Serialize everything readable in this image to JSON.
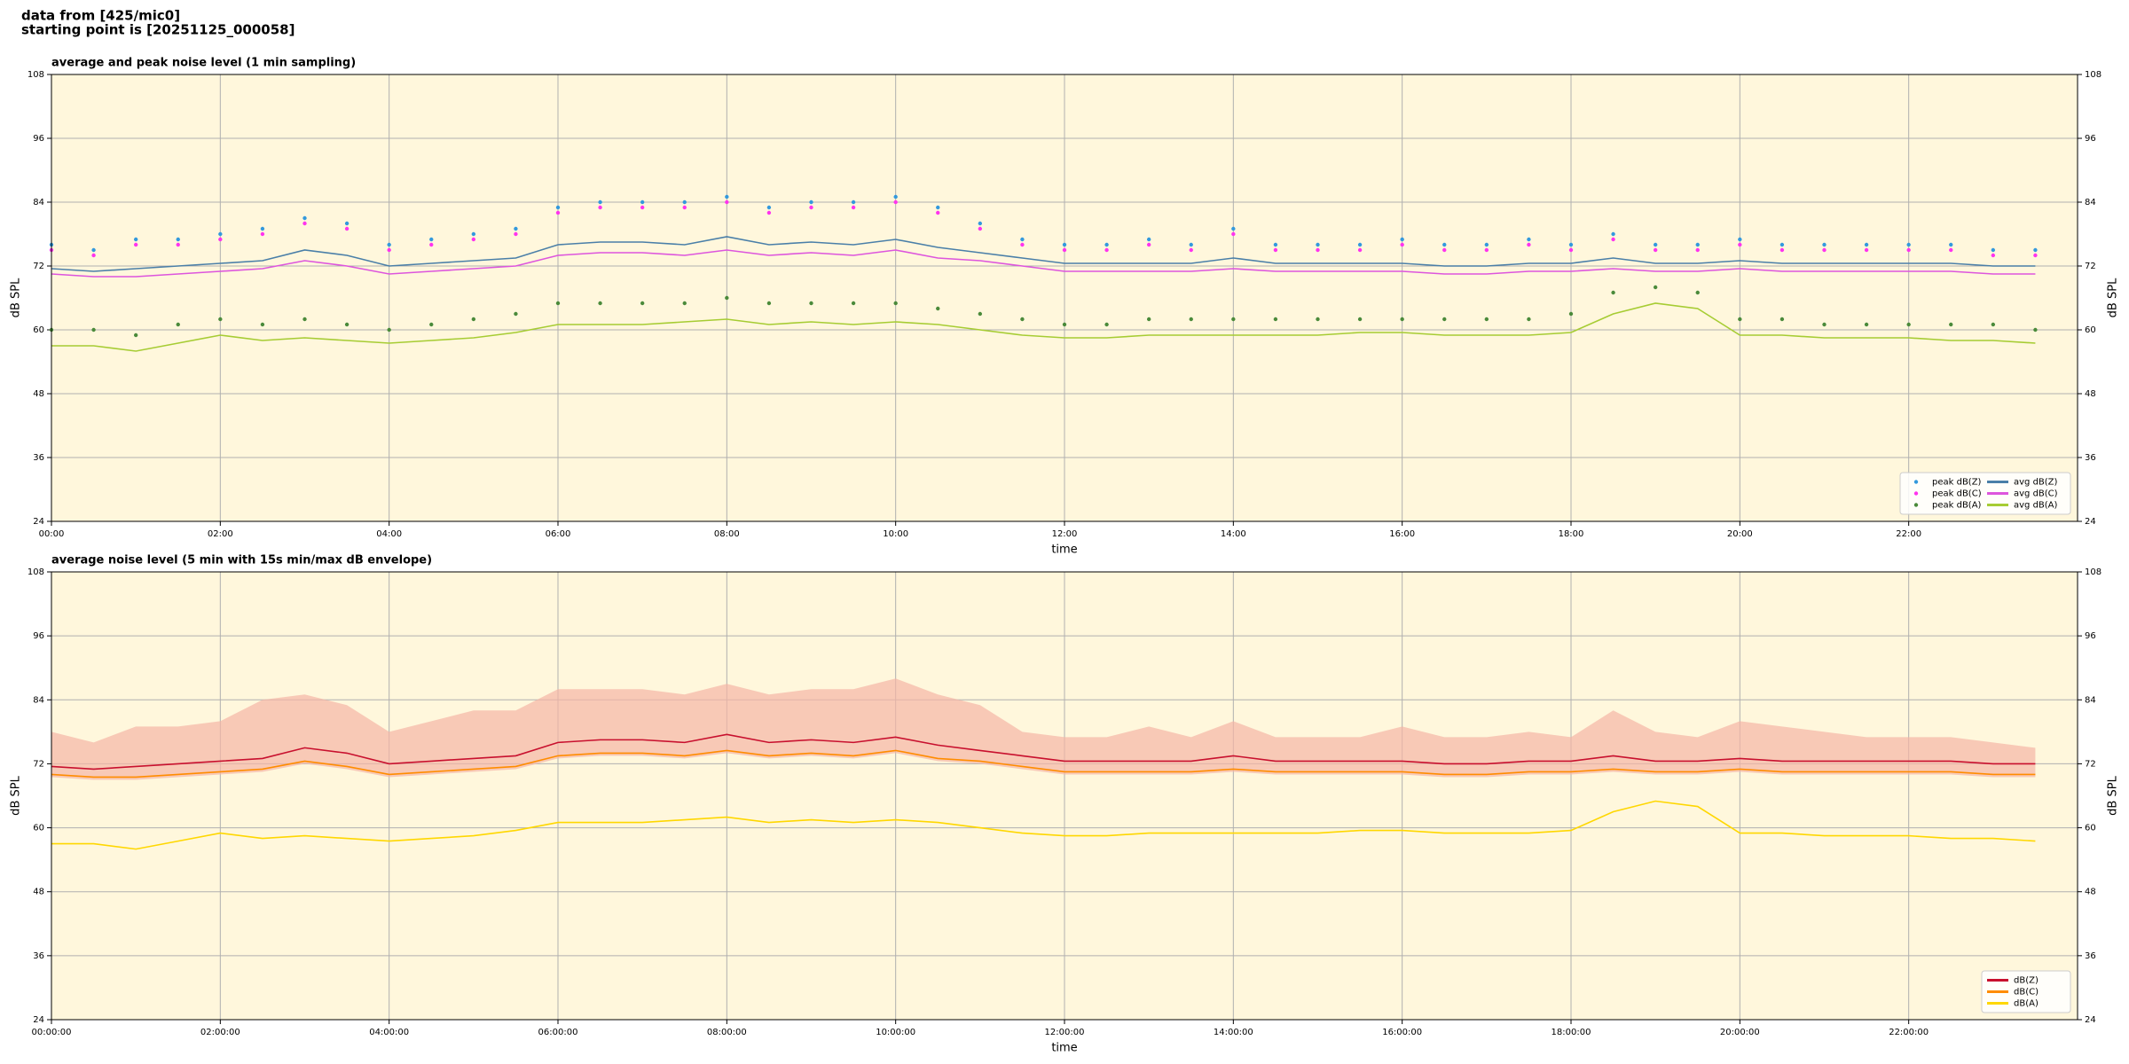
{
  "page_title": [
    "data from [425/mic0]",
    "starting point is [20251125_000058]"
  ],
  "chart_data": [
    {
      "type": "line",
      "title": "average and peak noise level (1 min sampling)",
      "xlabel": "time",
      "ylabel": "dB SPL",
      "xlim": [
        0,
        24
      ],
      "ylim": [
        24,
        108
      ],
      "yticks": [
        24,
        36,
        48,
        60,
        72,
        84,
        96,
        108
      ],
      "xticks": [
        {
          "value": 0,
          "label": "00:00"
        },
        {
          "value": 2,
          "label": "02:00"
        },
        {
          "value": 4,
          "label": "04:00"
        },
        {
          "value": 6,
          "label": "06:00"
        },
        {
          "value": 8,
          "label": "08:00"
        },
        {
          "value": 10,
          "label": "10:00"
        },
        {
          "value": 12,
          "label": "12:00"
        },
        {
          "value": 14,
          "label": "14:00"
        },
        {
          "value": 16,
          "label": "16:00"
        },
        {
          "value": 18,
          "label": "18:00"
        },
        {
          "value": 20,
          "label": "20:00"
        },
        {
          "value": 22,
          "label": "22:00"
        }
      ],
      "grid": true,
      "background": "#fff7dc",
      "legend": "lower right",
      "legend_columns": 2,
      "x": [
        0,
        0.5,
        1,
        1.5,
        2,
        2.5,
        3,
        3.5,
        4,
        4.5,
        5,
        5.5,
        6,
        6.5,
        7,
        7.5,
        8,
        8.5,
        9,
        9.5,
        10,
        10.5,
        11,
        11.5,
        12,
        12.5,
        13,
        13.5,
        14,
        14.5,
        15,
        15.5,
        16,
        16.5,
        17,
        17.5,
        18,
        18.5,
        19,
        19.5,
        20,
        20.5,
        21,
        21.5,
        22,
        22.5,
        23,
        23.5
      ],
      "series": [
        {
          "name": "peak dB(Z)",
          "color": "#3399dd",
          "marker": true,
          "values": [
            76,
            75,
            77,
            77,
            78,
            79,
            81,
            80,
            76,
            77,
            78,
            79,
            83,
            84,
            84,
            84,
            85,
            83,
            84,
            84,
            85,
            83,
            80,
            77,
            76,
            76,
            77,
            76,
            79,
            76,
            76,
            76,
            77,
            76,
            76,
            77,
            76,
            78,
            76,
            76,
            77,
            76,
            76,
            76,
            76,
            76,
            75,
            75
          ]
        },
        {
          "name": "peak dB(C)",
          "color": "#ff33ee",
          "marker": true,
          "values": [
            75,
            74,
            76,
            76,
            77,
            78,
            80,
            79,
            75,
            76,
            77,
            78,
            82,
            83,
            83,
            83,
            84,
            82,
            83,
            83,
            84,
            82,
            79,
            76,
            75,
            75,
            76,
            75,
            78,
            75,
            75,
            75,
            76,
            75,
            75,
            76,
            75,
            77,
            75,
            75,
            76,
            75,
            75,
            75,
            75,
            75,
            74,
            74
          ]
        },
        {
          "name": "peak dB(A)",
          "color": "#4a8a3a",
          "marker": true,
          "values": [
            60,
            60,
            59,
            61,
            62,
            61,
            62,
            61,
            60,
            61,
            62,
            63,
            65,
            65,
            65,
            65,
            66,
            65,
            65,
            65,
            65,
            64,
            63,
            62,
            61,
            61,
            62,
            62,
            62,
            62,
            62,
            62,
            62,
            62,
            62,
            62,
            63,
            67,
            68,
            67,
            62,
            62,
            61,
            61,
            61,
            61,
            61,
            60
          ]
        },
        {
          "name": "avg dB(Z)",
          "color": "#4a7fa8",
          "marker": false,
          "values": [
            71.5,
            71,
            71.5,
            72,
            72.5,
            73,
            75,
            74,
            72,
            72.5,
            73,
            73.5,
            76,
            76.5,
            76.5,
            76,
            77.5,
            76,
            76.5,
            76,
            77,
            75.5,
            74.5,
            73.5,
            72.5,
            72.5,
            72.5,
            72.5,
            73.5,
            72.5,
            72.5,
            72.5,
            72.5,
            72,
            72,
            72.5,
            72.5,
            73.5,
            72.5,
            72.5,
            73,
            72.5,
            72.5,
            72.5,
            72.5,
            72.5,
            72,
            72
          ]
        },
        {
          "name": "avg dB(C)",
          "color": "#dd55dd",
          "marker": false,
          "values": [
            70.5,
            70,
            70,
            70.5,
            71,
            71.5,
            73,
            72,
            70.5,
            71,
            71.5,
            72,
            74,
            74.5,
            74.5,
            74,
            75,
            74,
            74.5,
            74,
            75,
            73.5,
            73,
            72,
            71,
            71,
            71,
            71,
            71.5,
            71,
            71,
            71,
            71,
            70.5,
            70.5,
            71,
            71,
            71.5,
            71,
            71,
            71.5,
            71,
            71,
            71,
            71,
            71,
            70.5,
            70.5
          ]
        },
        {
          "name": "avg dB(A)",
          "color": "#a6cc33",
          "marker": false,
          "values": [
            57,
            57,
            56,
            57.5,
            59,
            58,
            58.5,
            58,
            57.5,
            58,
            58.5,
            59.5,
            61,
            61,
            61,
            61.5,
            62,
            61,
            61.5,
            61,
            61.5,
            61,
            60,
            59,
            58.5,
            58.5,
            59,
            59,
            59,
            59,
            59,
            59.5,
            59.5,
            59,
            59,
            59,
            59.5,
            63,
            65,
            64,
            59,
            59,
            58.5,
            58.5,
            58.5,
            58,
            58,
            57.5
          ]
        }
      ]
    },
    {
      "type": "line",
      "title": "average noise level (5 min with 15s min/max dB envelope)",
      "xlabel": "time",
      "ylabel": "dB SPL",
      "xlim": [
        0,
        24
      ],
      "ylim": [
        24,
        108
      ],
      "yticks": [
        24,
        36,
        48,
        60,
        72,
        84,
        96,
        108
      ],
      "xticks": [
        {
          "value": 0,
          "label": "00:00:00"
        },
        {
          "value": 2,
          "label": "02:00:00"
        },
        {
          "value": 4,
          "label": "04:00:00"
        },
        {
          "value": 6,
          "label": "06:00:00"
        },
        {
          "value": 8,
          "label": "08:00:00"
        },
        {
          "value": 10,
          "label": "10:00:00"
        },
        {
          "value": 12,
          "label": "12:00:00"
        },
        {
          "value": 14,
          "label": "14:00:00"
        },
        {
          "value": 16,
          "label": "16:00:00"
        },
        {
          "value": 18,
          "label": "18:00:00"
        },
        {
          "value": 20,
          "label": "20:00:00"
        },
        {
          "value": 22,
          "label": "22:00:00"
        }
      ],
      "grid": true,
      "background": "#fff7dc",
      "legend": "lower right",
      "legend_columns": 1,
      "x": [
        0,
        0.5,
        1,
        1.5,
        2,
        2.5,
        3,
        3.5,
        4,
        4.5,
        5,
        5.5,
        6,
        6.5,
        7,
        7.5,
        8,
        8.5,
        9,
        9.5,
        10,
        10.5,
        11,
        11.5,
        12,
        12.5,
        13,
        13.5,
        14,
        14.5,
        15,
        15.5,
        16,
        16.5,
        17,
        17.5,
        18,
        18.5,
        19,
        19.5,
        20,
        20.5,
        21,
        21.5,
        22,
        22.5,
        23,
        23.5
      ],
      "envelope": {
        "color": "#f5b5a5",
        "low": [
          69.5,
          69,
          69,
          69.5,
          70,
          70.5,
          72,
          71,
          69.5,
          70,
          70.5,
          71,
          73,
          73.5,
          73.5,
          73,
          74,
          73,
          73.5,
          73,
          74,
          72.5,
          72,
          71,
          70,
          70,
          70,
          70,
          70.5,
          70,
          70,
          70,
          70,
          69.5,
          69.5,
          70,
          70,
          70.5,
          70,
          70,
          70.5,
          70,
          70,
          70,
          70,
          70,
          69.5,
          69.5
        ],
        "high": [
          78,
          76,
          79,
          79,
          80,
          84,
          85,
          83,
          78,
          80,
          82,
          82,
          86,
          86,
          86,
          85,
          87,
          85,
          86,
          86,
          88,
          85,
          83,
          78,
          77,
          77,
          79,
          77,
          80,
          77,
          77,
          77,
          79,
          77,
          77,
          78,
          77,
          82,
          78,
          77,
          80,
          79,
          78,
          77,
          77,
          77,
          76,
          75
        ]
      },
      "series": [
        {
          "name": "dB(Z)",
          "color": "#c8102e",
          "marker": false,
          "values": [
            71.5,
            71,
            71.5,
            72,
            72.5,
            73,
            75,
            74,
            72,
            72.5,
            73,
            73.5,
            76,
            76.5,
            76.5,
            76,
            77.5,
            76,
            76.5,
            76,
            77,
            75.5,
            74.5,
            73.5,
            72.5,
            72.5,
            72.5,
            72.5,
            73.5,
            72.5,
            72.5,
            72.5,
            72.5,
            72,
            72,
            72.5,
            72.5,
            73.5,
            72.5,
            72.5,
            73,
            72.5,
            72.5,
            72.5,
            72.5,
            72.5,
            72,
            72
          ]
        },
        {
          "name": "dB(C)",
          "color": "#ff8c00",
          "marker": false,
          "values": [
            70,
            69.5,
            69.5,
            70,
            70.5,
            71,
            72.5,
            71.5,
            70,
            70.5,
            71,
            71.5,
            73.5,
            74,
            74,
            73.5,
            74.5,
            73.5,
            74,
            73.5,
            74.5,
            73,
            72.5,
            71.5,
            70.5,
            70.5,
            70.5,
            70.5,
            71,
            70.5,
            70.5,
            70.5,
            70.5,
            70,
            70,
            70.5,
            70.5,
            71,
            70.5,
            70.5,
            71,
            70.5,
            70.5,
            70.5,
            70.5,
            70.5,
            70,
            70
          ]
        },
        {
          "name": "dB(A)",
          "color": "#ffd700",
          "marker": false,
          "values": [
            57,
            57,
            56,
            57.5,
            59,
            58,
            58.5,
            58,
            57.5,
            58,
            58.5,
            59.5,
            61,
            61,
            61,
            61.5,
            62,
            61,
            61.5,
            61,
            61.5,
            61,
            60,
            59,
            58.5,
            58.5,
            59,
            59,
            59,
            59,
            59,
            59.5,
            59.5,
            59,
            59,
            59,
            59.5,
            63,
            65,
            64,
            59,
            59,
            58.5,
            58.5,
            58.5,
            58,
            58,
            57.5
          ]
        }
      ]
    }
  ]
}
